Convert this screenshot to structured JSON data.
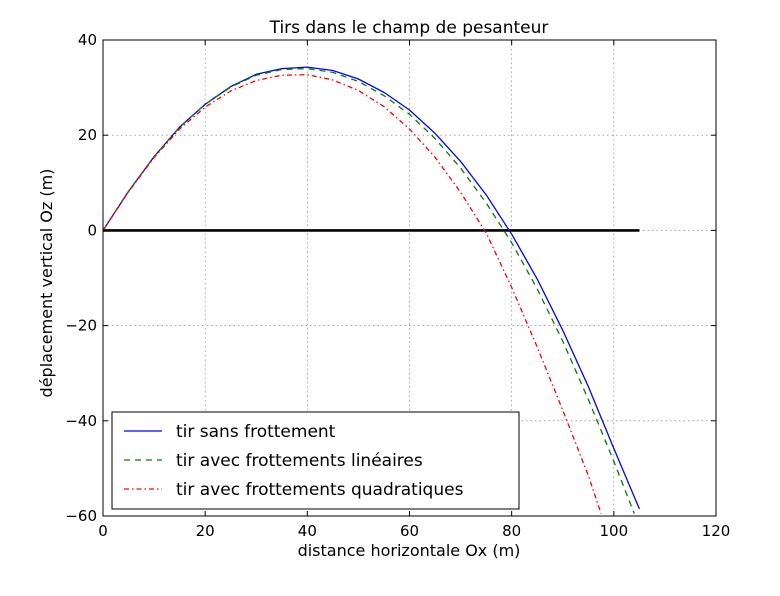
{
  "chart_data": {
    "type": "line",
    "title": "Tirs dans le champ de pesanteur",
    "xlabel": "distance horizontale Ox (m)",
    "ylabel": "déplacement vertical Oz (m)",
    "xlim": [
      0,
      120
    ],
    "ylim": [
      -60,
      40
    ],
    "x_ticks": [
      0,
      20,
      40,
      60,
      80,
      100,
      120
    ],
    "y_ticks": [
      -60,
      -40,
      -20,
      0,
      20,
      40
    ],
    "x_tick_labels": [
      "0",
      "20",
      "40",
      "60",
      "80",
      "100",
      "120"
    ],
    "y_tick_labels": [
      "−60",
      "−40",
      "−20",
      "0",
      "20",
      "40"
    ],
    "grid": true,
    "legend_position": "lower-left",
    "series": [
      {
        "name": "tir sans frottement",
        "color": "#0000ff",
        "style": "solid",
        "points": [
          [
            0,
            0
          ],
          [
            5,
            8.2
          ],
          [
            10,
            15.5
          ],
          [
            15,
            21.7
          ],
          [
            20,
            26.5
          ],
          [
            25,
            30.2
          ],
          [
            30,
            32.8
          ],
          [
            35,
            34.0
          ],
          [
            40,
            34.3
          ],
          [
            45,
            33.6
          ],
          [
            50,
            31.8
          ],
          [
            55,
            29.0
          ],
          [
            60,
            25.3
          ],
          [
            65,
            20.4
          ],
          [
            70,
            14.5
          ],
          [
            75,
            7.5
          ],
          [
            80,
            -0.8
          ],
          [
            85,
            -10.2
          ],
          [
            90,
            -21.0
          ],
          [
            95,
            -32.8
          ],
          [
            100,
            -45.8
          ],
          [
            105,
            -58.5
          ]
        ]
      },
      {
        "name": "tir avec frottements linéaires",
        "color": "#008000",
        "style": "dashed",
        "points": [
          [
            0,
            0
          ],
          [
            5,
            8.2
          ],
          [
            10,
            15.5
          ],
          [
            15,
            21.7
          ],
          [
            20,
            26.5
          ],
          [
            25,
            30.1
          ],
          [
            30,
            32.6
          ],
          [
            35,
            33.8
          ],
          [
            40,
            34.0
          ],
          [
            45,
            33.2
          ],
          [
            50,
            31.3
          ],
          [
            55,
            28.3
          ],
          [
            60,
            24.4
          ],
          [
            65,
            19.3
          ],
          [
            70,
            13.1
          ],
          [
            75,
            5.8
          ],
          [
            80,
            -2.6
          ],
          [
            85,
            -12.3
          ],
          [
            90,
            -23.3
          ],
          [
            95,
            -35.5
          ],
          [
            100,
            -48.5
          ],
          [
            104,
            -59.5
          ]
        ]
      },
      {
        "name": "tir avec frottements quadratiques",
        "color": "#ff0000",
        "style": "dashdot",
        "points": [
          [
            0,
            0
          ],
          [
            5,
            8.1
          ],
          [
            10,
            15.3
          ],
          [
            15,
            21.3
          ],
          [
            20,
            25.9
          ],
          [
            25,
            29.3
          ],
          [
            30,
            31.5
          ],
          [
            35,
            32.6
          ],
          [
            40,
            32.7
          ],
          [
            45,
            31.6
          ],
          [
            50,
            29.4
          ],
          [
            55,
            26.0
          ],
          [
            60,
            21.3
          ],
          [
            65,
            15.4
          ],
          [
            70,
            8.0
          ],
          [
            75,
            -0.5
          ],
          [
            80,
            -12.0
          ],
          [
            85,
            -24.5
          ],
          [
            90,
            -37.8
          ],
          [
            95,
            -51.5
          ],
          [
            97.5,
            -59.5
          ]
        ]
      }
    ],
    "reference_line": {
      "y": 0,
      "x_range": [
        0,
        105
      ],
      "color": "#000000"
    }
  }
}
